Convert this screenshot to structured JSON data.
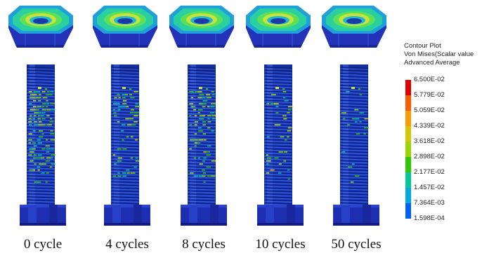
{
  "specimens": [
    {
      "caption": "0 cycle"
    },
    {
      "caption": "4 cycles"
    },
    {
      "caption": "8 cycles"
    },
    {
      "caption": "10 cycles"
    },
    {
      "caption": "50 cycles"
    }
  ],
  "legend": {
    "title": "Contour Plot",
    "subtitle": "Von Mises(Scalar value",
    "averaging": "Advanced Average",
    "ticks": [
      "6.500E-02",
      "5.779E-02",
      "5.059E-02",
      "4.339E-02",
      "3.618E-02",
      "2.898E-02",
      "2.177E-02",
      "1.457E-02",
      "7.364E-03",
      "1.598E-04"
    ],
    "colors": [
      "#e00000",
      "#ff5a00",
      "#ff9900",
      "#d6c800",
      "#9bd400",
      "#2ec800",
      "#00c896",
      "#00a8e6",
      "#0060ff",
      "#1a0fb4"
    ]
  }
}
